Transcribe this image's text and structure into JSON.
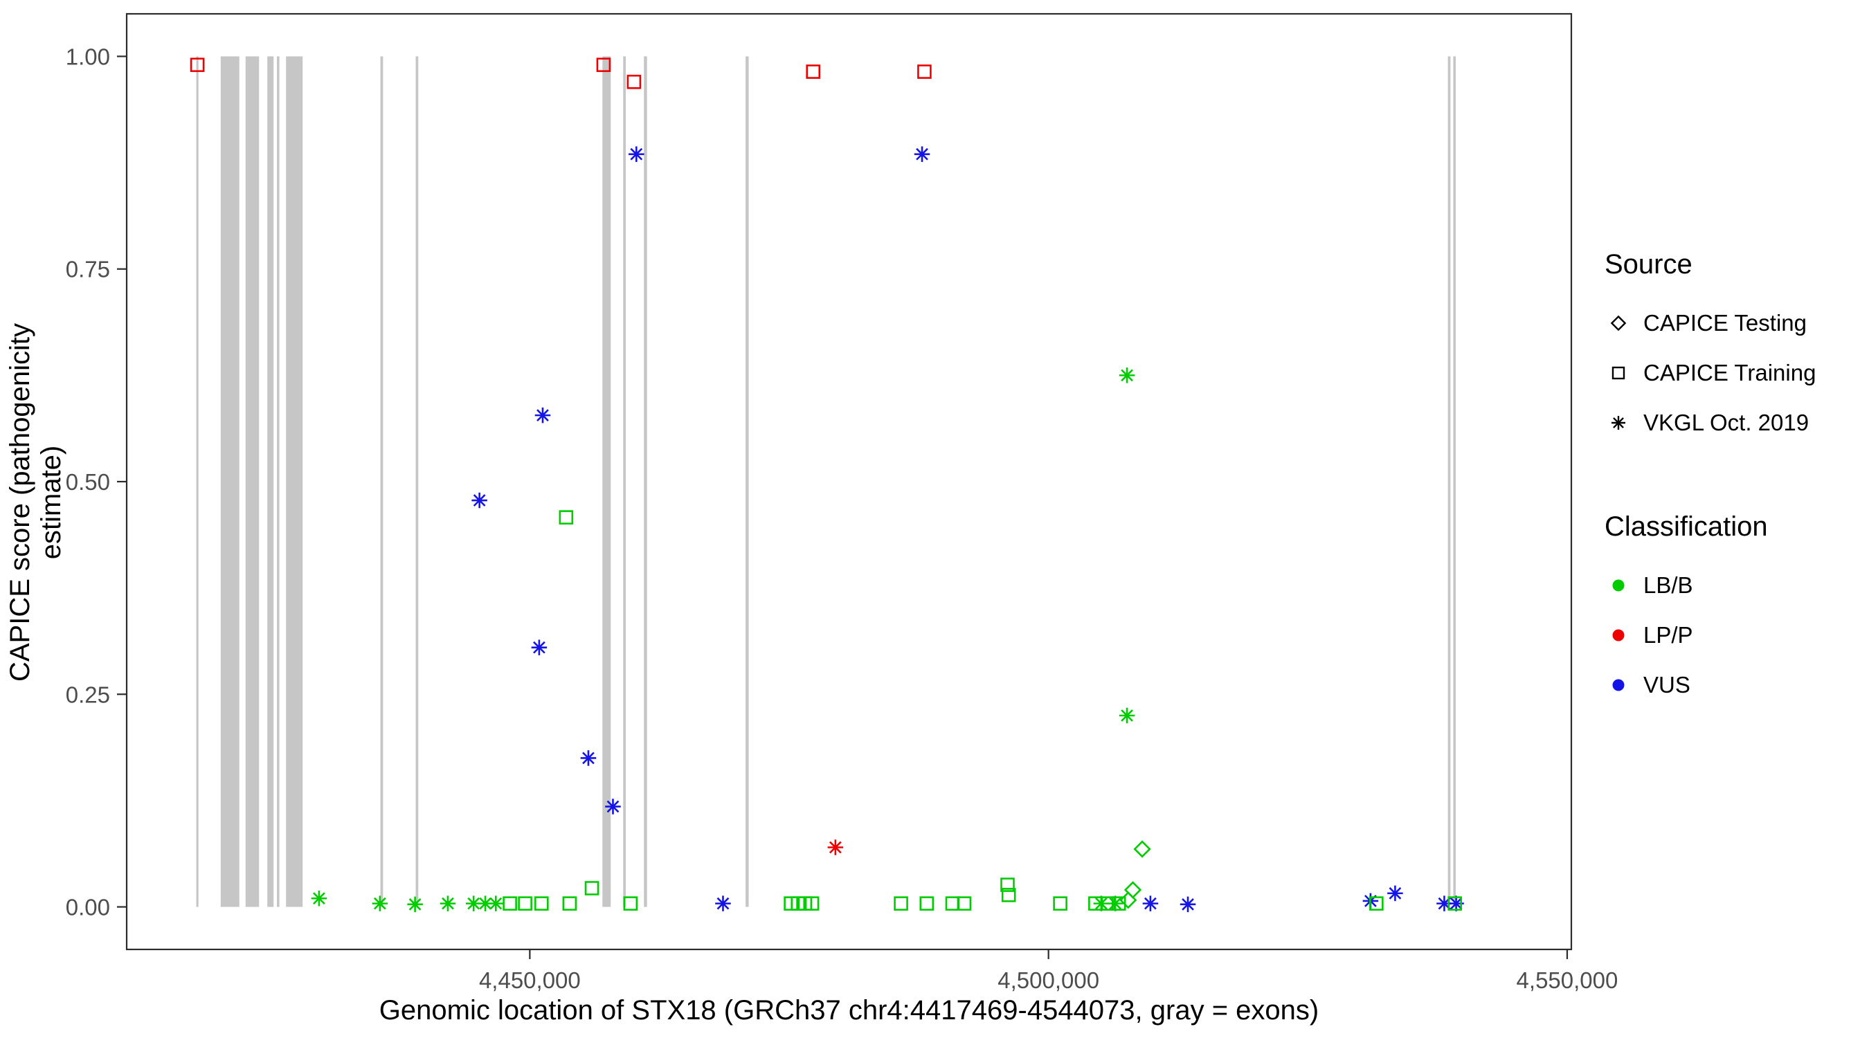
{
  "chart_data": {
    "type": "scatter",
    "title": "",
    "xlabel": "Genomic location of STX18 (GRCh37 chr4:4417469-4544073, gray = exons)",
    "ylabel": "CAPICE score (pathogenicity estimate)",
    "xlim": [
      4411139,
      4550403
    ],
    "ylim": [
      -0.05,
      1.05
    ],
    "x_ticks": [
      {
        "value": 4450000,
        "label": "4,450,000"
      },
      {
        "value": 4500000,
        "label": "4,500,000"
      },
      {
        "value": 4550000,
        "label": "4,550,000"
      }
    ],
    "y_ticks": [
      {
        "value": 0.0,
        "label": "0.00"
      },
      {
        "value": 0.25,
        "label": "0.25"
      },
      {
        "value": 0.5,
        "label": "0.50"
      },
      {
        "value": 0.75,
        "label": "0.75"
      },
      {
        "value": 1.0,
        "label": "1.00"
      }
    ],
    "grid": false,
    "exon_color": "#c6c6c6",
    "exons": [
      [
        4417850,
        4418060
      ],
      [
        4420200,
        4422000
      ],
      [
        4422600,
        4423900
      ],
      [
        4424700,
        4425300
      ],
      [
        4425620,
        4425860
      ],
      [
        4426500,
        4428100
      ],
      [
        4435600,
        4435850
      ],
      [
        4439000,
        4439250
      ],
      [
        4457000,
        4457800
      ],
      [
        4459000,
        4459250
      ],
      [
        4461000,
        4461300
      ],
      [
        4470800,
        4471100
      ],
      [
        4538500,
        4538750
      ],
      [
        4539020,
        4539260
      ]
    ],
    "colors": {
      "lb_b": "#00cc00",
      "lp_p": "#ee0000",
      "vus": "#1414e6"
    },
    "series": [
      {
        "name": "LP/P CAPICE Training",
        "source": "CAPICE Training",
        "classification": "LP/P",
        "marker": "square-open",
        "color": "#ee0000",
        "points": [
          [
            4417950,
            0.99
          ],
          [
            4457112,
            0.99
          ],
          [
            4460047,
            0.97
          ],
          [
            4477316,
            0.982
          ],
          [
            4488039,
            0.982
          ]
        ]
      },
      {
        "name": "LP/P VKGL Oct. 2019",
        "source": "VKGL Oct. 2019",
        "classification": "LP/P",
        "marker": "asterisk",
        "color": "#ee0000",
        "points": [
          [
            4479460,
            0.07
          ]
        ]
      },
      {
        "name": "VUS VKGL Oct. 2019",
        "source": "VKGL Oct. 2019",
        "classification": "VUS",
        "marker": "asterisk",
        "color": "#1414e6",
        "points": [
          [
            4460272,
            0.885
          ],
          [
            4487813,
            0.885
          ],
          [
            4451242,
            0.578
          ],
          [
            4445147,
            0.478
          ],
          [
            4450903,
            0.305
          ],
          [
            4455644,
            0.175
          ],
          [
            4458015,
            0.118
          ],
          [
            4468625,
            0.004
          ],
          [
            4509825,
            0.004
          ],
          [
            4513437,
            0.003
          ],
          [
            4531045,
            0.007
          ],
          [
            4533415,
            0.016
          ],
          [
            4538156,
            0.004
          ],
          [
            4539300,
            0.004
          ]
        ]
      },
      {
        "name": "LB/B VKGL Oct. 2019",
        "source": "VKGL Oct. 2019",
        "classification": "LB/B",
        "marker": "asterisk",
        "color": "#00cc00",
        "points": [
          [
            4507568,
            0.625
          ],
          [
            4507568,
            0.225
          ],
          [
            4429683,
            0.01
          ],
          [
            4435552,
            0.004
          ],
          [
            4438938,
            0.003
          ],
          [
            4442099,
            0.004
          ],
          [
            4444582,
            0.004
          ],
          [
            4445711,
            0.004
          ],
          [
            4446727,
            0.004
          ],
          [
            4505085,
            0.004
          ],
          [
            4506439,
            0.004
          ]
        ]
      },
      {
        "name": "LB/B CAPICE Training",
        "source": "CAPICE Training",
        "classification": "LB/B",
        "marker": "square-open",
        "color": "#00cc00",
        "points": [
          [
            4453499,
            0.458
          ],
          [
            4455982,
            0.022
          ],
          [
            4448081,
            0.004
          ],
          [
            4449549,
            0.004
          ],
          [
            4451129,
            0.004
          ],
          [
            4453838,
            0.004
          ],
          [
            4459708,
            0.004
          ],
          [
            4475172,
            0.004
          ],
          [
            4475849,
            0.004
          ],
          [
            4476526,
            0.004
          ],
          [
            4477203,
            0.004
          ],
          [
            4485781,
            0.004
          ],
          [
            4488264,
            0.004
          ],
          [
            4490747,
            0.004
          ],
          [
            4491876,
            0.004
          ],
          [
            4496053,
            0.026
          ],
          [
            4496166,
            0.014
          ],
          [
            4501132,
            0.004
          ],
          [
            4504519,
            0.004
          ],
          [
            4505761,
            0.004
          ],
          [
            4506777,
            0.004
          ],
          [
            4531609,
            0.004
          ],
          [
            4539172,
            0.004
          ]
        ]
      },
      {
        "name": "LB/B CAPICE Testing",
        "source": "CAPICE Testing",
        "classification": "LB/B",
        "marker": "diamond-open",
        "color": "#00cc00",
        "points": [
          [
            4509035,
            0.068
          ],
          [
            4508132,
            0.02
          ],
          [
            4507681,
            0.008
          ]
        ]
      }
    ],
    "legend": {
      "position": "right",
      "source_title": "Source",
      "source_items": [
        {
          "label": "CAPICE Testing",
          "marker": "diamond-open"
        },
        {
          "label": "CAPICE Training",
          "marker": "square-open"
        },
        {
          "label": "VKGL Oct. 2019",
          "marker": "asterisk"
        }
      ],
      "classification_title": "Classification",
      "classification_items": [
        {
          "label": "LB/B",
          "color": "#00cc00"
        },
        {
          "label": "LP/P",
          "color": "#ee0000"
        },
        {
          "label": "VUS",
          "color": "#1414e6"
        }
      ]
    }
  }
}
